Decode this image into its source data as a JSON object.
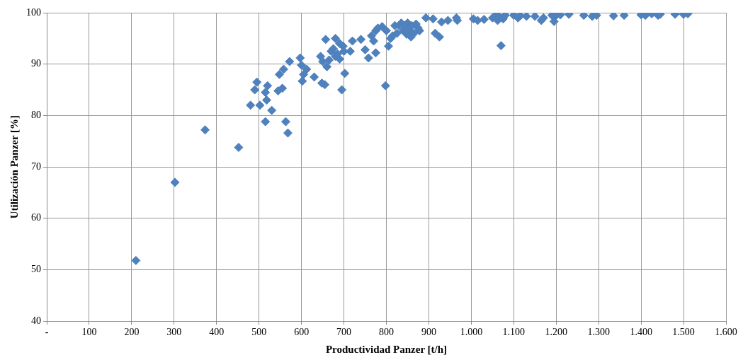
{
  "chart_data": {
    "type": "scatter",
    "xlabel": "Productividad Panzer [t/h]",
    "ylabel": "Utilización Panzer [%]",
    "marker": "diamond",
    "grid": true,
    "legend": false,
    "xlim": [
      0,
      1600
    ],
    "xticks": [
      {
        "value": 0,
        "label": "-"
      },
      100,
      200,
      300,
      400,
      500,
      600,
      700,
      800,
      900,
      {
        "value": 1000,
        "label": "1.000"
      },
      {
        "value": 1100,
        "label": "1.100"
      },
      {
        "value": 1200,
        "label": "1.200"
      },
      {
        "value": 1300,
        "label": "1.300"
      },
      {
        "value": 1400,
        "label": "1.400"
      },
      {
        "value": 1500,
        "label": "1.500"
      },
      {
        "value": 1600,
        "label": "1.600"
      }
    ],
    "ylim": [
      40,
      100
    ],
    "yticks": [
      40,
      50,
      60,
      70,
      80,
      90,
      100
    ],
    "series": [
      {
        "color": "#4f81bd",
        "x": [
          210,
          302,
          373,
          452,
          480,
          490,
          495,
          502,
          515,
          515,
          518,
          520,
          530,
          545,
          548,
          555,
          558,
          563,
          568,
          572,
          597,
          600,
          602,
          605,
          612,
          630,
          645,
          648,
          650,
          655,
          657,
          660,
          665,
          670,
          675,
          680,
          680,
          685,
          690,
          690,
          695,
          698,
          700,
          702,
          715,
          720,
          740,
          750,
          758,
          765,
          770,
          775,
          775,
          780,
          790,
          798,
          800,
          805,
          810,
          815,
          820,
          825,
          830,
          835,
          840,
          845,
          848,
          850,
          855,
          858,
          860,
          865,
          870,
          875,
          878,
          893,
          910,
          915,
          925,
          930,
          945,
          965,
          967,
          1005,
          1015,
          1030,
          1050,
          1058,
          1062,
          1065,
          1070,
          1075,
          1080,
          1100,
          1110,
          1115,
          1130,
          1150,
          1165,
          1170,
          1190,
          1195,
          1200,
          1210,
          1230,
          1265,
          1285,
          1295,
          1335,
          1360,
          1400,
          1410,
          1425,
          1440,
          1445,
          1480,
          1500,
          1510
        ],
        "values": [
          51.8,
          67,
          77.2,
          73.8,
          82,
          85,
          86.5,
          82,
          78.8,
          84.5,
          83,
          85.8,
          81,
          84.8,
          88,
          85.3,
          89,
          78.8,
          76.6,
          90.5,
          91.2,
          89.8,
          86.7,
          88,
          89,
          87.5,
          91.5,
          86.3,
          90.5,
          86,
          94.8,
          89.5,
          90.8,
          92.5,
          93,
          95,
          91.5,
          92,
          91,
          94,
          85,
          93.5,
          92.5,
          88.2,
          92.5,
          94.5,
          94.8,
          92.8,
          91.2,
          95.5,
          94.5,
          92.2,
          96.5,
          97,
          97.3,
          85.8,
          96.5,
          93.5,
          95,
          95.5,
          97.5,
          96,
          97.5,
          98,
          96.5,
          97,
          95.8,
          98,
          96.5,
          95.3,
          97.5,
          96,
          97.8,
          97,
          96.5,
          99,
          98.8,
          96,
          95.3,
          98.2,
          98.5,
          99,
          98.5,
          98.8,
          98.5,
          98.7,
          99,
          99.5,
          98.5,
          99.3,
          93.6,
          98.8,
          99.5,
          99.5,
          99,
          99.4,
          99.3,
          99.3,
          98.5,
          99,
          99.5,
          98.3,
          99.5,
          99.6,
          99.7,
          99.5,
          99.3,
          99.5,
          99.4,
          99.5,
          99.6,
          99.5,
          99.8,
          99.5,
          99.7,
          99.7,
          99.7,
          99.8
        ]
      }
    ]
  }
}
